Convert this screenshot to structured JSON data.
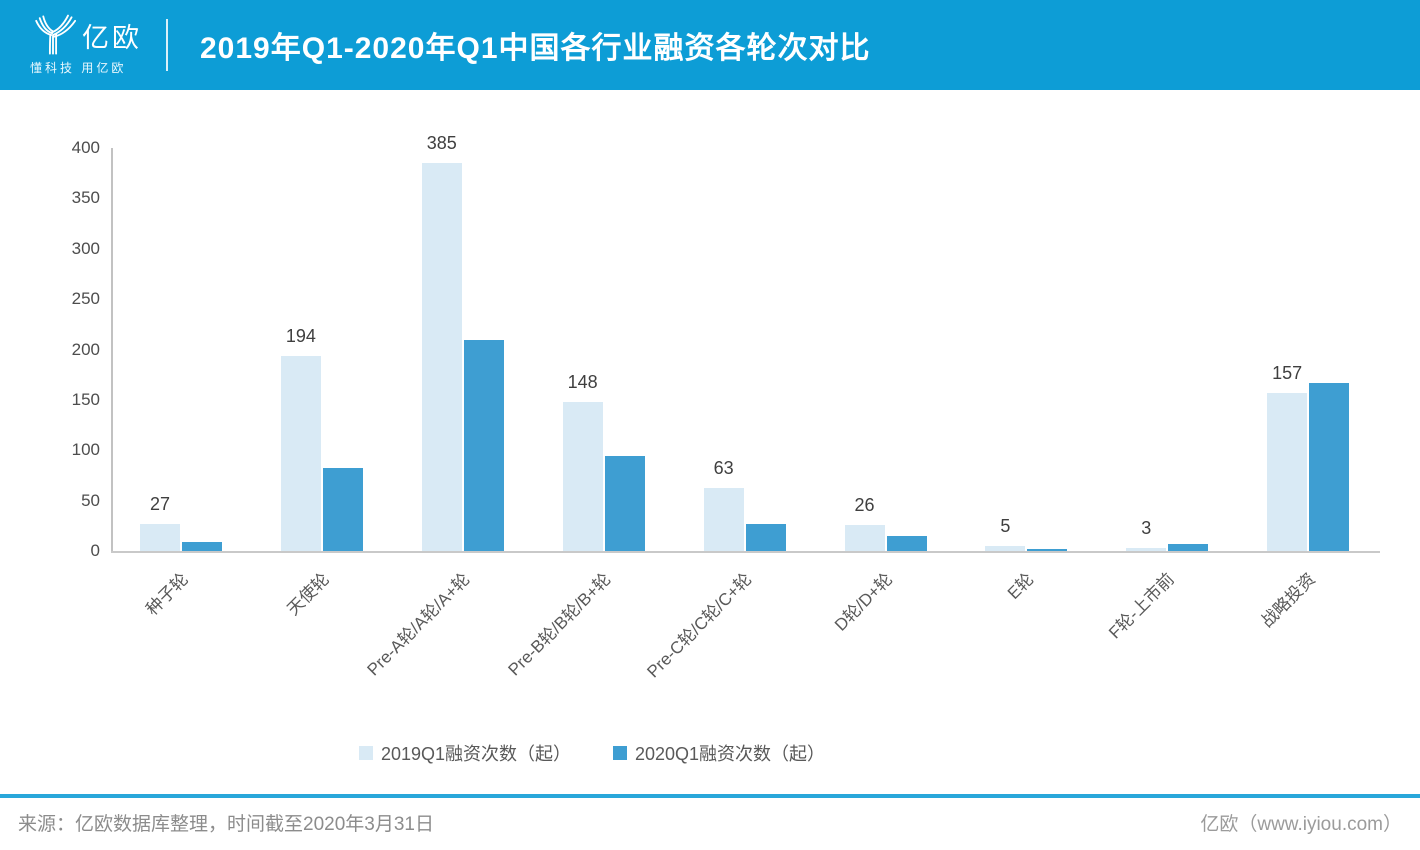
{
  "header": {
    "logo_text": "亿欧",
    "logo_tagline": "懂科技 用亿欧",
    "title": "2019年Q1-2020年Q1中国各行业融资各轮次对比",
    "background_color": "#0D9DD6"
  },
  "chart_data": {
    "type": "bar",
    "title": "2019年Q1-2020年Q1中国各行业融资各轮次对比",
    "categories": [
      "种子轮",
      "天使轮",
      "Pre-A轮/A轮/A+轮",
      "Pre-B轮/B轮/B+轮",
      "Pre-C轮/C轮/C+轮",
      "D轮/D+轮",
      "E轮",
      "F轮-上市前",
      "战略投资"
    ],
    "series": [
      {
        "name": "2019Q1融资次数（起）",
        "color": "#D9EAF5",
        "values": [
          27,
          194,
          385,
          148,
          63,
          26,
          5,
          3,
          157
        ],
        "data_labels": true
      },
      {
        "name": "2020Q1融资次数（起）",
        "color": "#3E9ED2",
        "values": [
          9,
          82,
          209,
          94,
          27,
          15,
          2,
          7,
          167
        ],
        "data_labels": false
      }
    ],
    "ylim": [
      0,
      400
    ],
    "yticks": [
      0,
      50,
      100,
      150,
      200,
      250,
      300,
      350,
      400
    ],
    "grid": false,
    "legend_position": "bottom",
    "xlabel": "",
    "ylabel": ""
  },
  "footer": {
    "source_text": "来源：亿欧数据库整理，时间截至2020年3月31日",
    "brand_text": "亿欧（www.iyiou.com）"
  },
  "colors": {
    "header_bg": "#0D9DD6",
    "series_2019": "#D9EAF5",
    "series_2020": "#3E9ED2",
    "footer_rule": "#29A7DA",
    "axis_line": "#C2C2C2"
  }
}
